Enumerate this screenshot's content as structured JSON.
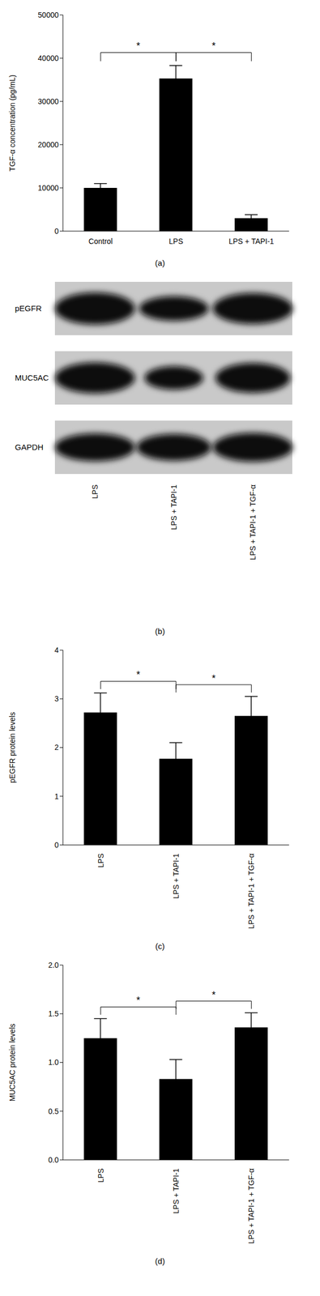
{
  "chart_data": [
    {
      "type": "bar",
      "title": "(a)",
      "y_label": "TGF-α concentration (pg/mL)",
      "categories": [
        "Control",
        "LPS",
        "LPS + TAPI-1"
      ],
      "values": [
        10000,
        35300,
        3000
      ],
      "errors": [
        1000,
        3000,
        800
      ],
      "color": "#000000",
      "ylim": [
        0,
        50000
      ],
      "yticks": [
        0,
        10000,
        20000,
        30000,
        40000,
        50000
      ],
      "significance": [
        {
          "from": 0,
          "to": 1,
          "label": "*"
        },
        {
          "from": 1,
          "to": 2,
          "label": "*"
        }
      ]
    },
    {
      "type": "bar",
      "title": "(c)",
      "y_label": "pEGFR protein levels",
      "categories": [
        "LPS",
        "LPS + TAPI-1",
        "LPS + TAPI-1 + TGF-α"
      ],
      "values": [
        2.72,
        1.77,
        2.65
      ],
      "errors": [
        0.4,
        0.33,
        0.4
      ],
      "color": "#000000",
      "ylim": [
        0,
        4
      ],
      "yticks": [
        0,
        1,
        2,
        3,
        4
      ],
      "significance": [
        {
          "from": 0,
          "to": 1,
          "label": "*"
        },
        {
          "from": 1,
          "to": 2,
          "label": "*"
        }
      ]
    },
    {
      "type": "bar",
      "title": "(d)",
      "y_label": "MUC5AC protein levels",
      "categories": [
        "LPS",
        "LPS + TAPI-1",
        "LPS + TAPI-1 + TGF-α"
      ],
      "values": [
        1.25,
        0.83,
        1.36
      ],
      "errors": [
        0.2,
        0.2,
        0.15
      ],
      "color": "#000000",
      "ylim": [
        0,
        2
      ],
      "yticks": [
        {
          "value": 0,
          "label": "0.0"
        },
        0.5,
        {
          "value": 1,
          "label": "1.0"
        },
        1.5,
        {
          "value": 2,
          "label": "2.0"
        }
      ],
      "significance": [
        {
          "from": 0,
          "to": 1,
          "label": "*"
        },
        {
          "from": 1,
          "to": 2,
          "label": "*"
        }
      ]
    }
  ],
  "blot": {
    "title": "(b)",
    "rows": [
      "pEGFR",
      "MUC5AC",
      "GAPDH"
    ],
    "lanes": [
      "LPS",
      "LPS + TAPI-1",
      "LPS + TAPI-1 + TGF-α"
    ]
  }
}
